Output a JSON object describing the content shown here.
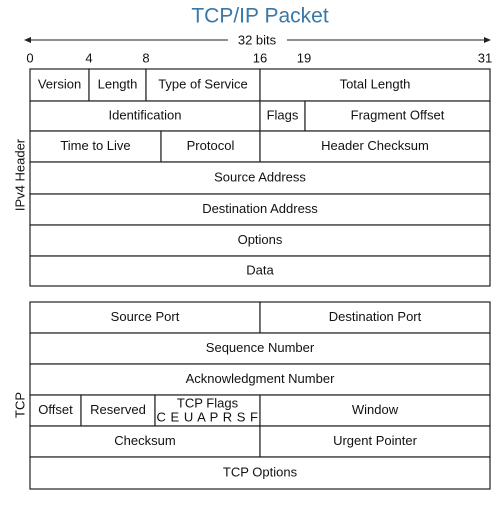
{
  "title": "TCP/IP Packet",
  "width_label": "32 bits",
  "bit_labels": [
    "0",
    "4",
    "8",
    "16",
    "19",
    "31"
  ],
  "ipv4": {
    "label": "IPv4 Header",
    "rows": [
      [
        "Version",
        "Length",
        "Type of Service",
        "Total Length"
      ],
      [
        "Identification",
        "Flags",
        "Fragment Offset"
      ],
      [
        "Time to Live",
        "Protocol",
        "Header Checksum"
      ],
      [
        "Source Address"
      ],
      [
        "Destination Address"
      ],
      [
        "Options"
      ],
      [
        "Data"
      ]
    ]
  },
  "tcp": {
    "label": "TCP",
    "rows": [
      [
        "Source Port",
        "Destination Port"
      ],
      [
        "Sequence Number"
      ],
      [
        "Acknowledgment Number"
      ],
      [
        "Offset",
        "Reserved",
        "TCP Flags",
        "Window"
      ],
      [
        "Checksum",
        "Urgent Pointer"
      ],
      [
        "TCP Options"
      ]
    ],
    "flag_bits": "C E U A P R S F"
  }
}
